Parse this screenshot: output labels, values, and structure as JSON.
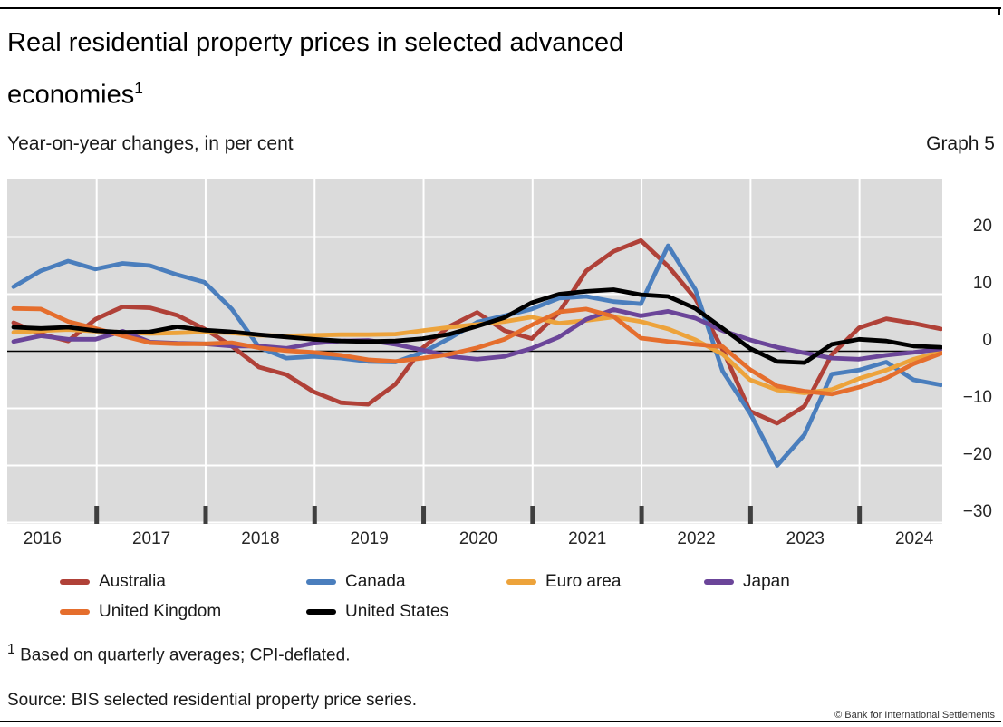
{
  "header": {
    "title_line1": "Real residential property prices in selected advanced",
    "title_line2": "economies",
    "title_superscript": "1",
    "subtitle_left": "Year-on-year changes, in per cent",
    "graph_label": "Graph 5"
  },
  "chart_data": {
    "type": "line",
    "frequency": "quarterly",
    "x_start": "2016-Q1",
    "x_end": "2024-Q3",
    "x_year_labels": [
      "2016",
      "2017",
      "2018",
      "2019",
      "2020",
      "2021",
      "2022",
      "2023",
      "2024"
    ],
    "y_tick_labels": [
      "20",
      "10",
      "0",
      "−10",
      "−20",
      "−30"
    ],
    "y_tick_values": [
      20,
      10,
      0,
      -10,
      -20,
      -30
    ],
    "ylim": [
      -30,
      30
    ],
    "grid": true,
    "legend_position": "bottom",
    "plot_bg": "#dbdbdb",
    "grid_color": "#ffffff",
    "zero_line_color": "#000000",
    "tick_color": "#3f3f3f",
    "series": [
      {
        "name": "Australia",
        "color": "#b04138",
        "values": [
          5.0,
          3.0,
          1.8,
          5.6,
          7.8,
          7.6,
          6.3,
          3.9,
          0.9,
          -2.8,
          -4.1,
          -7.1,
          -9.0,
          -9.3,
          -5.8,
          0.6,
          4.4,
          6.8,
          3.6,
          2.2,
          6.8,
          14.1,
          17.5,
          19.4,
          14.9,
          9.2,
          0.3,
          -10.5,
          -12.6,
          -9.6,
          -0.6,
          4.1,
          5.7,
          4.9,
          3.9
        ]
      },
      {
        "name": "Canada",
        "color": "#4a7ebd",
        "values": [
          11.3,
          14.1,
          15.8,
          14.4,
          15.4,
          15.0,
          13.4,
          12.1,
          7.4,
          0.7,
          -1.2,
          -0.9,
          -1.2,
          -1.8,
          -1.9,
          -0.2,
          2.3,
          5.1,
          6.2,
          7.4,
          9.3,
          9.6,
          8.7,
          8.3,
          18.5,
          10.8,
          -3.5,
          -10.8,
          -20.0,
          -14.6,
          -4.0,
          -3.3,
          -1.9,
          -5.0,
          -5.9
        ]
      },
      {
        "name": "Euro area",
        "color": "#eda33b",
        "values": [
          3.3,
          3.6,
          3.8,
          3.5,
          3.3,
          3.1,
          3.2,
          3.4,
          3.2,
          2.8,
          2.7,
          2.8,
          2.9,
          2.9,
          3.0,
          3.6,
          4.2,
          4.7,
          5.2,
          6.0,
          4.9,
          5.4,
          6.0,
          5.2,
          3.9,
          2.0,
          -0.5,
          -5.0,
          -6.8,
          -7.3,
          -6.7,
          -4.8,
          -3.3,
          -1.4,
          -0.1
        ]
      },
      {
        "name": "Japan",
        "color": "#6b4599",
        "values": [
          1.7,
          2.7,
          2.1,
          2.1,
          3.5,
          1.6,
          1.4,
          1.3,
          0.9,
          0.9,
          0.5,
          1.4,
          1.8,
          1.9,
          1.2,
          0.2,
          -0.9,
          -1.4,
          -0.9,
          0.5,
          2.5,
          5.6,
          7.3,
          6.2,
          7.0,
          5.8,
          3.6,
          2.0,
          0.7,
          -0.3,
          -1.2,
          -1.4,
          -0.7,
          -0.2,
          0.4
        ]
      },
      {
        "name": "United Kingdom",
        "color": "#e56e2d",
        "values": [
          7.5,
          7.4,
          5.2,
          4.0,
          2.7,
          1.5,
          1.3,
          1.3,
          1.5,
          0.6,
          0.1,
          -0.2,
          -0.7,
          -1.5,
          -1.8,
          -1.2,
          -0.5,
          0.6,
          2.1,
          4.6,
          6.9,
          7.4,
          6.1,
          2.3,
          1.7,
          1.2,
          0.8,
          -3.2,
          -6.1,
          -7.0,
          -7.5,
          -6.3,
          -4.7,
          -2.2,
          -0.4
        ]
      },
      {
        "name": "United States",
        "color": "#000000",
        "values": [
          4.2,
          4.0,
          4.2,
          3.6,
          3.3,
          3.4,
          4.3,
          3.7,
          3.4,
          2.9,
          2.5,
          2.1,
          1.8,
          1.7,
          1.8,
          2.2,
          3.0,
          4.4,
          5.9,
          8.5,
          10.0,
          10.5,
          10.8,
          9.9,
          9.6,
          7.5,
          4.0,
          0.5,
          -1.8,
          -2.0,
          1.2,
          2.1,
          1.8,
          0.9,
          0.7
        ]
      }
    ]
  },
  "footnote": {
    "superscript": "1",
    "text": " Based on quarterly averages; CPI-deflated."
  },
  "source_line": "Source: BIS selected residential property price series.",
  "copyright": "© Bank for International Settlements"
}
